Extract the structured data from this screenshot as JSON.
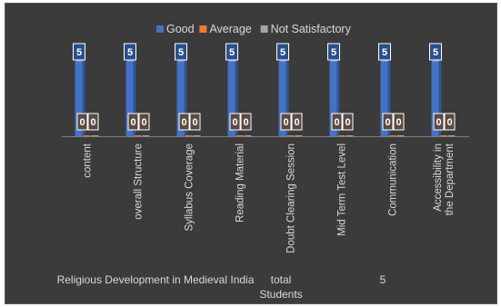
{
  "chart_data": {
    "type": "bar",
    "categories": [
      "content",
      "overall Structure",
      "Syllabus Coverage",
      "Reading Material",
      "Doubt Clearing Session",
      "Mid Term Test Level",
      "Communication",
      "Accessibility in the Department"
    ],
    "series": [
      {
        "name": "Good",
        "values": [
          5,
          5,
          5,
          5,
          5,
          5,
          5,
          5
        ],
        "color": "#4472c4"
      },
      {
        "name": "Average",
        "values": [
          0,
          0,
          0,
          0,
          0,
          0,
          0,
          0
        ],
        "color": "#ed7d31"
      },
      {
        "name": "Not Satisfactory",
        "values": [
          0,
          0,
          0,
          0,
          0,
          0,
          0,
          0
        ],
        "color": "#a5a5a5"
      }
    ],
    "ylim": [
      0,
      5
    ],
    "legend_position": "top",
    "data_labels": true,
    "grid": false
  },
  "footer": {
    "course": "Religious Development in Medieval India",
    "total_label": "total Students",
    "total_value": "5"
  }
}
